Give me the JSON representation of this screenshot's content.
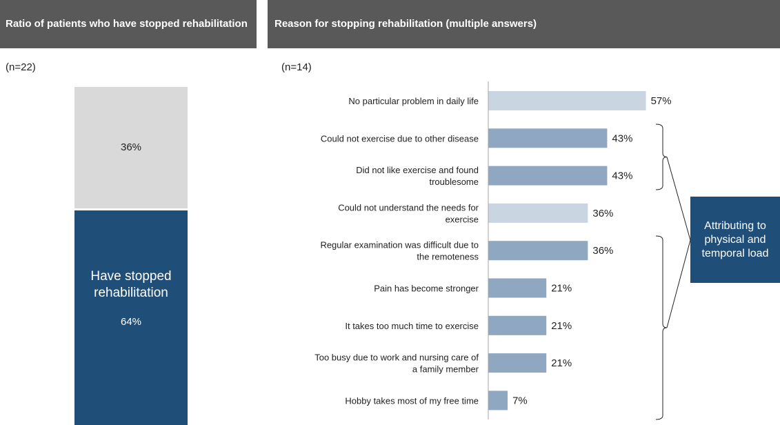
{
  "left_panel": {
    "header": "Ratio of patients who have stopped rehabilitation",
    "n_label": "(n=22)",
    "segments": [
      {
        "label": "",
        "value_label": "36%",
        "value": 36,
        "color": "#d9d9d9"
      },
      {
        "label": "Have stopped rehabilitation",
        "value_label": "64%",
        "value": 64,
        "color": "#1f4e79"
      }
    ]
  },
  "right_panel": {
    "header": "Reason for stopping rehabilitation (multiple answers)",
    "n_label": "(n=14)",
    "callout": "Attributing to physical and temporal load"
  },
  "chart_data": [
    {
      "type": "bar",
      "orientation": "vertical-stacked",
      "title": "Ratio of patients who have stopped rehabilitation",
      "categories": [
        "Have stopped rehabilitation",
        ""
      ],
      "values": [
        64,
        36
      ],
      "unit": "%"
    },
    {
      "type": "bar",
      "orientation": "horizontal",
      "title": "Reason for stopping rehabilitation (multiple answers)",
      "xlim": [
        0,
        100
      ],
      "categories": [
        [
          "No particular problem in daily life"
        ],
        [
          "Could not exercise due to other disease"
        ],
        [
          "Did not like exercise and found",
          "troublesome"
        ],
        [
          "Could not understand the needs for",
          "exercise"
        ],
        [
          "Regular examination was difficult due to",
          "the remoteness"
        ],
        [
          "Pain has become stronger"
        ],
        [
          "It takes too much time to exercise"
        ],
        [
          "Too busy due to work and nursing care of",
          "a family member"
        ],
        [
          "Hobby takes most of my free time"
        ]
      ],
      "values": [
        57,
        43,
        43,
        36,
        36,
        21,
        21,
        21,
        7
      ],
      "value_labels": [
        "57%",
        "43%",
        "43%",
        "36%",
        "36%",
        "21%",
        "21%",
        "21%",
        "7%"
      ],
      "bar_colors": [
        "#c9d5e0",
        "#8fa7c1",
        "#8fa7c1",
        "#c9d5e0",
        "#8fa7c1",
        "#8fa7c1",
        "#8fa7c1",
        "#8fa7c1",
        "#8fa7c1"
      ]
    }
  ]
}
